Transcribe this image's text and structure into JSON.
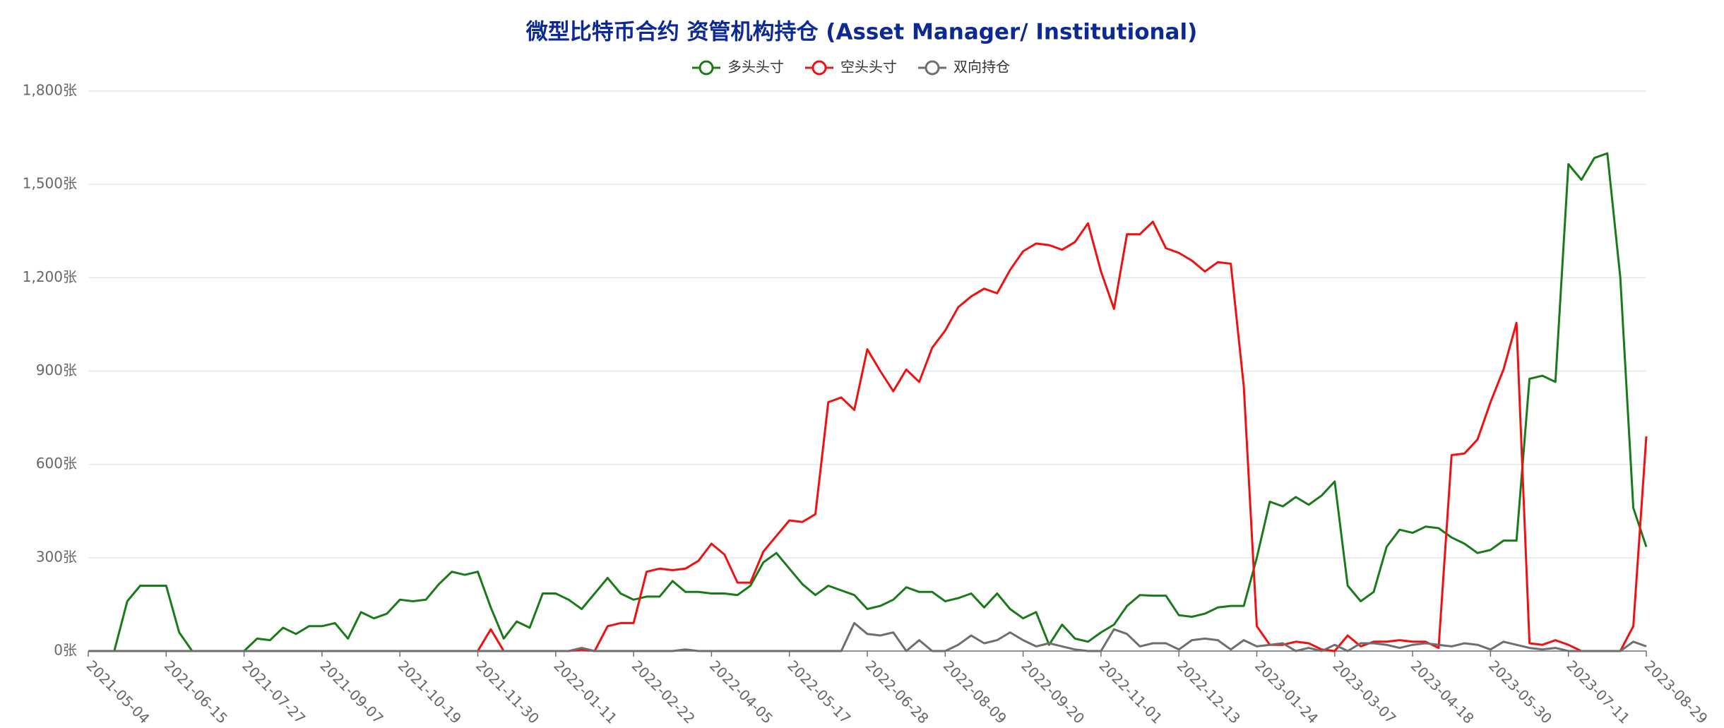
{
  "chart_data": {
    "type": "line",
    "title": "微型比特币合约 资管机构持仓 (Asset Manager/ Institutional)",
    "categories": [
      "2021-05-04",
      null,
      null,
      null,
      null,
      null,
      "2021-06-15",
      null,
      null,
      null,
      null,
      null,
      "2021-07-27",
      null,
      null,
      null,
      null,
      null,
      "2021-09-07",
      null,
      null,
      null,
      null,
      null,
      "2021-10-19",
      null,
      null,
      null,
      null,
      null,
      "2021-11-30",
      null,
      null,
      null,
      null,
      null,
      "2022-01-11",
      null,
      null,
      null,
      null,
      null,
      "2022-02-22",
      null,
      null,
      null,
      null,
      null,
      "2022-04-05",
      null,
      null,
      null,
      null,
      null,
      "2022-05-17",
      null,
      null,
      null,
      null,
      null,
      "2022-06-28",
      null,
      null,
      null,
      null,
      null,
      "2022-08-09",
      null,
      null,
      null,
      null,
      null,
      "2022-09-20",
      null,
      null,
      null,
      null,
      null,
      "2022-11-01",
      null,
      null,
      null,
      null,
      null,
      "2022-12-13",
      null,
      null,
      null,
      null,
      null,
      "2023-01-24",
      null,
      null,
      null,
      null,
      null,
      "2023-03-07",
      null,
      null,
      null,
      null,
      null,
      "2023-04-18",
      null,
      null,
      null,
      null,
      null,
      "2023-05-30",
      null,
      null,
      null,
      null,
      null,
      "2023-07-11",
      null,
      null,
      null,
      null,
      null,
      "2023-08-29"
    ],
    "series": [
      {
        "name": "多头头寸",
        "color": "#1a7a1a",
        "values": [
          0,
          0,
          0,
          160,
          210,
          210,
          210,
          60,
          0,
          0,
          0,
          0,
          0,
          40,
          35,
          75,
          55,
          80,
          80,
          90,
          40,
          125,
          105,
          120,
          165,
          160,
          165,
          215,
          255,
          245,
          255,
          140,
          40,
          95,
          75,
          185,
          185,
          165,
          135,
          185,
          235,
          185,
          165,
          175,
          175,
          225,
          190,
          190,
          185,
          185,
          180,
          210,
          285,
          315,
          265,
          215,
          180,
          210,
          195,
          180,
          135,
          145,
          165,
          205,
          190,
          190,
          160,
          170,
          185,
          140,
          185,
          135,
          105,
          125,
          20,
          85,
          40,
          30,
          60,
          85,
          145,
          180,
          178,
          178,
          115,
          110,
          120,
          140,
          145,
          145,
          300,
          480,
          465,
          495,
          470,
          500,
          545,
          210,
          160,
          190,
          335,
          390,
          380,
          400,
          395,
          365,
          345,
          315,
          325,
          355,
          355,
          875,
          885,
          865,
          1565,
          1515,
          1585,
          1600,
          1200,
          460,
          335
        ]
      },
      {
        "name": "空头头寸",
        "color": "#f01010",
        "values": [
          0,
          0,
          0,
          0,
          0,
          0,
          0,
          0,
          0,
          0,
          0,
          0,
          0,
          0,
          0,
          0,
          0,
          0,
          0,
          0,
          0,
          0,
          0,
          0,
          0,
          0,
          0,
          0,
          0,
          0,
          0,
          70,
          0,
          0,
          0,
          0,
          0,
          0,
          5,
          0,
          80,
          90,
          90,
          255,
          265,
          260,
          265,
          290,
          345,
          310,
          220,
          220,
          320,
          370,
          420,
          415,
          440,
          800,
          815,
          775,
          970,
          900,
          835,
          905,
          865,
          975,
          1030,
          1105,
          1140,
          1165,
          1150,
          1225,
          1285,
          1310,
          1305,
          1290,
          1315,
          1375,
          1220,
          1100,
          1340,
          1340,
          1380,
          1295,
          1280,
          1255,
          1220,
          1250,
          1245,
          850,
          80,
          20,
          20,
          30,
          25,
          5,
          0,
          50,
          15,
          30,
          30,
          35,
          30,
          30,
          10,
          630,
          635,
          680,
          800,
          905,
          1055,
          25,
          20,
          35,
          20,
          0,
          0,
          0,
          0,
          80,
          690
        ]
      },
      {
        "name": "双向持仓",
        "color": "#6e6e6e",
        "values": [
          0,
          0,
          0,
          0,
          0,
          0,
          0,
          0,
          0,
          0,
          0,
          0,
          0,
          0,
          0,
          0,
          0,
          0,
          0,
          0,
          0,
          0,
          0,
          0,
          0,
          0,
          0,
          0,
          0,
          0,
          0,
          0,
          0,
          0,
          0,
          0,
          0,
          0,
          10,
          0,
          0,
          0,
          0,
          0,
          0,
          0,
          5,
          0,
          0,
          0,
          0,
          0,
          0,
          0,
          0,
          0,
          0,
          0,
          0,
          90,
          55,
          50,
          60,
          0,
          35,
          0,
          0,
          20,
          50,
          25,
          35,
          60,
          35,
          15,
          25,
          15,
          5,
          0,
          0,
          70,
          55,
          15,
          25,
          25,
          5,
          35,
          40,
          35,
          5,
          35,
          15,
          20,
          25,
          0,
          10,
          0,
          20,
          0,
          25,
          25,
          20,
          10,
          20,
          25,
          20,
          15,
          25,
          20,
          5,
          30,
          20,
          10,
          5,
          10,
          0,
          0,
          0,
          0,
          0,
          30,
          15
        ]
      }
    ],
    "ylim": [
      0,
      1800
    ],
    "yticks": [
      {
        "value": 0,
        "label": "0张"
      },
      {
        "value": 300,
        "label": "300张"
      },
      {
        "value": 600,
        "label": "600张"
      },
      {
        "value": 900,
        "label": "900张"
      },
      {
        "value": 1200,
        "label": "1,200张"
      },
      {
        "value": 1500,
        "label": "1,500张"
      },
      {
        "value": 1800,
        "label": "1,800张"
      }
    ],
    "grid": true
  }
}
